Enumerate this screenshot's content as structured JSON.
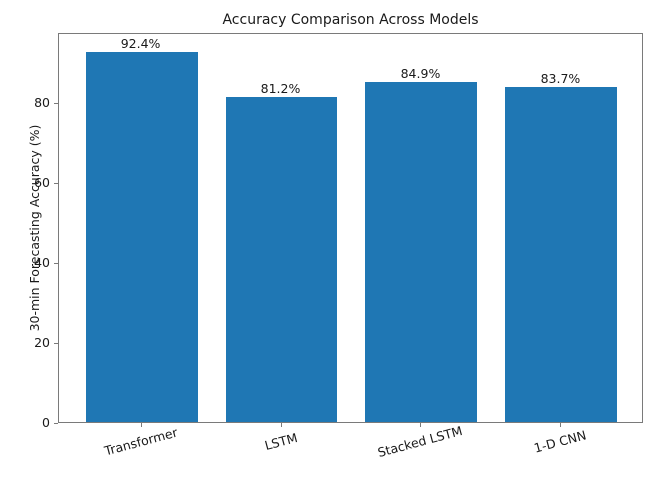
{
  "chart_data": {
    "type": "bar",
    "title": "Accuracy Comparison Across Models",
    "categories": [
      "Transformer",
      "LSTM",
      "Stacked LSTM",
      "1-D CNN"
    ],
    "values": [
      92.4,
      81.2,
      84.9,
      83.7
    ],
    "bar_labels": [
      "92.4%",
      "81.2%",
      "84.9%",
      "83.7%"
    ],
    "xlabel": "",
    "ylabel": "30-min Forecasting Accuracy (%)",
    "yticks": [
      0,
      20,
      40,
      60,
      80
    ],
    "ylim": [
      0,
      97.5
    ],
    "grid": false,
    "legend": null,
    "xtick_rotation_deg": 15,
    "bar_color": "#1f77b4",
    "axis_color": "#7a7a7a",
    "text_color": "#1a1a1a",
    "background": "#ffffff"
  }
}
